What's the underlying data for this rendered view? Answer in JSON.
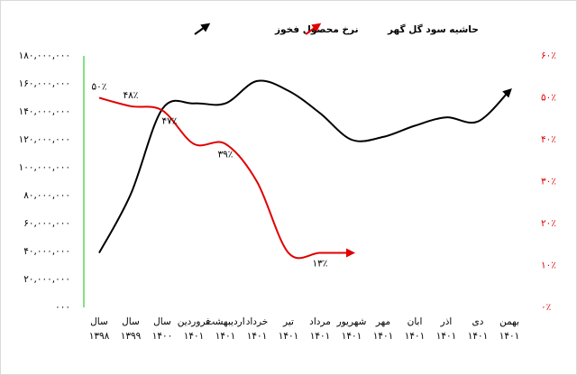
{
  "chart_data": {
    "type": "line",
    "categories": [
      [
        "سال",
        "۱۳۹۸"
      ],
      [
        "سال",
        "۱۳۹۹"
      ],
      [
        "سال",
        "۱۴۰۰"
      ],
      [
        "فروردین",
        "۱۴۰۱"
      ],
      [
        "اردیبهشت",
        "۱۴۰۱"
      ],
      [
        "خرداد",
        "۱۴۰۱"
      ],
      [
        "تیر",
        "۱۴۰۱"
      ],
      [
        "مرداد",
        "۱۴۰۱"
      ],
      [
        "شهریور",
        "۱۴۰۱"
      ],
      [
        "مهر",
        "۱۴۰۱"
      ],
      [
        "ابان",
        "۱۴۰۱"
      ],
      [
        "اذر",
        "۱۴۰۱"
      ],
      [
        "دی",
        "۱۴۰۱"
      ],
      [
        "بهمن",
        "۱۴۰۱"
      ]
    ],
    "series": [
      {
        "name": "نرخ محصول فخوز",
        "color": "#000000",
        "values": [
          39000000,
          81000000,
          142000000,
          146000000,
          146000000,
          162000000,
          155000000,
          139000000,
          120000000,
          122000000,
          130000000,
          136000000,
          133000000,
          155000000
        ]
      },
      {
        "name": "حاشیه سود گل گهر",
        "color": "#e00000",
        "axis": "y2",
        "values": [
          50,
          48,
          47,
          39,
          39,
          30,
          13,
          13,
          13,
          null,
          null,
          null,
          null,
          null
        ],
        "value_labels": [
          "۵۰٪",
          "۴۸٪",
          "۴۷٪",
          null,
          "۳۹٪",
          null,
          null,
          "۱۳٪",
          null,
          null,
          null,
          null,
          null,
          null
        ]
      }
    ],
    "ylim": [
      0,
      180000000
    ],
    "yticks": [
      {
        "value": 0,
        "label": "۰۰۰"
      },
      {
        "value": 20000000,
        "label": "۲۰,۰۰۰,۰۰۰"
      },
      {
        "value": 40000000,
        "label": "۴۰,۰۰۰,۰۰۰"
      },
      {
        "value": 60000000,
        "label": "۶۰,۰۰۰,۰۰۰"
      },
      {
        "value": 80000000,
        "label": "۸۰,۰۰۰,۰۰۰"
      },
      {
        "value": 100000000,
        "label": "۱۰۰,۰۰۰,۰۰۰"
      },
      {
        "value": 120000000,
        "label": "۱۲۰,۰۰۰,۰۰۰"
      },
      {
        "value": 140000000,
        "label": "۱۴۰,۰۰۰,۰۰۰"
      },
      {
        "value": 160000000,
        "label": "۱۶۰,۰۰۰,۰۰۰"
      },
      {
        "value": 180000000,
        "label": "۱۸۰,۰۰۰,۰۰۰"
      }
    ],
    "y2lim": [
      0,
      60
    ],
    "y2ticks": [
      {
        "value": 0,
        "label": "۰٪"
      },
      {
        "value": 10,
        "label": "۱۰٪"
      },
      {
        "value": 20,
        "label": "۲۰٪"
      },
      {
        "value": 30,
        "label": "۳۰٪"
      },
      {
        "value": 40,
        "label": "۴۰٪"
      },
      {
        "value": 50,
        "label": "۵۰٪"
      },
      {
        "value": 60,
        "label": "۶۰٪"
      }
    ],
    "grid": false
  }
}
